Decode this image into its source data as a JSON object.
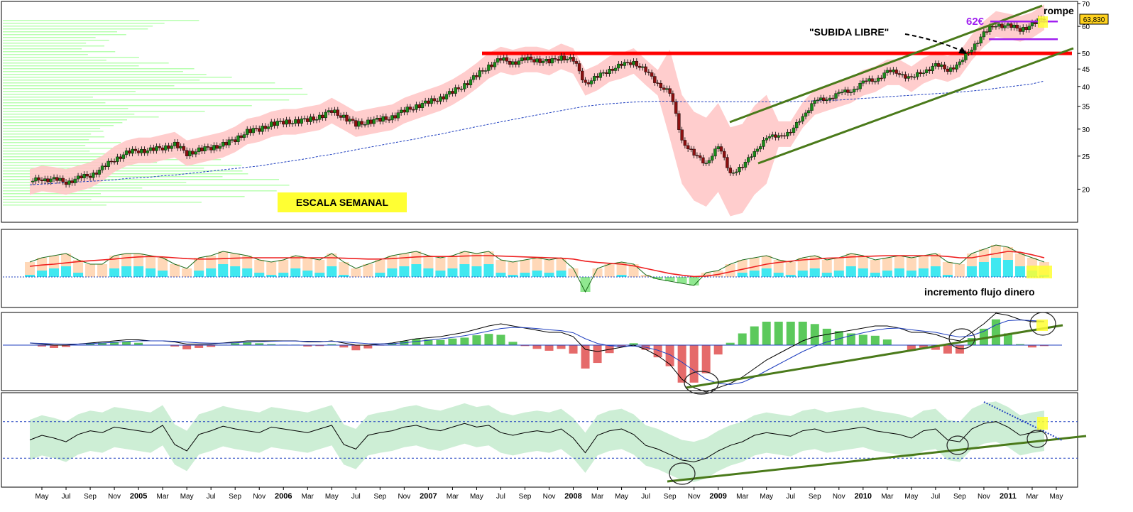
{
  "annotations": {
    "scale_label": "ESCALA SEMANAL",
    "breakout_label": "\"SUBIDA LIBRE\"",
    "target_label": "62€",
    "breaks_label": "rompe",
    "price_tag": "63,830",
    "money_flow_label": "incremento flujo dinero"
  },
  "colors": {
    "bull_candle": "#1a8a1a",
    "bear_candle": "#8b1010",
    "band_fill": "#ffc8c8",
    "resistance": "#ff0000",
    "channel": "#4a7a1a",
    "moving_average": "#1f3fbf",
    "target_line": "#a020f0",
    "highlight": "#ffff33",
    "volume_profile": "#b8ffb0"
  },
  "chart_data": [
    {
      "type": "line",
      "panel": "price",
      "yscale": "log",
      "ylim": [
        16,
        71
      ],
      "yticks": [
        "20",
        "25",
        "30",
        "35",
        "40",
        "45",
        "50",
        "60",
        "70"
      ],
      "yticks_values": [
        20,
        25,
        30,
        35,
        40,
        45,
        50,
        60,
        70
      ],
      "x": [
        "2004-04",
        "2004-05",
        "2004-06",
        "2004-07",
        "2004-08",
        "2004-09",
        "2004-10",
        "2004-11",
        "2004-12",
        "2005-01",
        "2005-02",
        "2005-03",
        "2005-04",
        "2005-05",
        "2005-06",
        "2005-07",
        "2005-08",
        "2005-09",
        "2005-10",
        "2005-11",
        "2005-12",
        "2006-01",
        "2006-02",
        "2006-03",
        "2006-04",
        "2006-05",
        "2006-06",
        "2006-07",
        "2006-08",
        "2006-09",
        "2006-10",
        "2006-11",
        "2006-12",
        "2007-01",
        "2007-02",
        "2007-03",
        "2007-04",
        "2007-05",
        "2007-06",
        "2007-07",
        "2007-08",
        "2007-09",
        "2007-10",
        "2007-11",
        "2007-12",
        "2008-01",
        "2008-02",
        "2008-03",
        "2008-04",
        "2008-05",
        "2008-06",
        "2008-07",
        "2008-08",
        "2008-09",
        "2008-10",
        "2008-11",
        "2008-12",
        "2009-01",
        "2009-02",
        "2009-03",
        "2009-04",
        "2009-05",
        "2009-06",
        "2009-07",
        "2009-08",
        "2009-09",
        "2009-10",
        "2009-11",
        "2009-12",
        "2010-01",
        "2010-02",
        "2010-03",
        "2010-04",
        "2010-05",
        "2010-06",
        "2010-07",
        "2010-08",
        "2010-09",
        "2010-10",
        "2010-11",
        "2010-12",
        "2011-01",
        "2011-02",
        "2011-03",
        "2011-04"
      ],
      "series": [
        {
          "values": [
            21,
            21.5,
            21.3,
            21,
            21.5,
            22,
            23,
            24.5,
            25.5,
            26,
            26,
            26.5,
            27,
            25.5,
            26,
            26.5,
            27,
            28,
            29.5,
            30,
            31,
            31.5,
            31.5,
            32,
            32.5,
            34,
            32.5,
            31,
            31.5,
            32,
            32.5,
            34,
            35,
            36,
            37,
            38.5,
            40.5,
            43,
            46,
            48,
            47,
            48,
            48,
            47,
            49,
            47.5,
            41,
            42.5,
            45,
            46,
            47.5,
            44,
            41,
            38,
            28,
            25,
            24,
            26.5,
            22.5,
            23,
            26,
            28,
            29,
            29,
            33,
            36,
            37,
            38,
            39,
            41,
            42,
            44,
            44,
            42,
            44.5,
            46,
            45,
            46.5,
            52,
            57,
            61,
            60,
            59,
            60.5,
            63.8
          ]
        },
        {
          "name": "MA",
          "values": [
            20.6,
            20.7,
            20.8,
            20.9,
            21,
            21.1,
            21.2,
            21.3,
            21.5,
            21.6,
            21.7,
            21.9,
            22,
            22.2,
            22.4,
            22.6,
            22.8,
            23,
            23.2,
            23.4,
            23.7,
            24,
            24.3,
            24.6,
            25,
            25.3,
            25.7,
            26.1,
            26.5,
            26.9,
            27.3,
            27.7,
            28.1,
            28.6,
            29,
            29.5,
            30,
            30.5,
            31,
            31.5,
            32,
            32.5,
            33,
            33.5,
            34,
            34.5,
            35,
            35.3,
            35.6,
            35.8,
            36,
            36.1,
            36.2,
            36.2,
            36.1,
            36.1,
            36.1,
            36.1,
            36.1,
            36.1,
            36.1,
            36.1,
            36.1,
            36.1,
            36.2,
            36.3,
            36.4,
            36.5,
            36.7,
            36.9,
            37.1,
            37.3,
            37.5,
            37.7,
            37.9,
            38.1,
            38.3,
            38.5,
            38.8,
            39.1,
            39.5,
            39.9,
            40.3,
            40.7,
            41.5
          ]
        }
      ],
      "resistance_level": 50,
      "target_levels": [
        62,
        55
      ],
      "last_price": 63.83
    },
    {
      "type": "area",
      "panel": "money-flow",
      "ylim": [
        -1,
        1
      ],
      "series": [
        {
          "values": [
            0.35,
            0.45,
            0.5,
            0.55,
            0.4,
            0.3,
            0.3,
            0.5,
            0.55,
            0.55,
            0.5,
            0.45,
            0.3,
            0.2,
            0.45,
            0.5,
            0.6,
            0.55,
            0.5,
            0.4,
            0.35,
            0.4,
            0.5,
            0.45,
            0.4,
            0.55,
            0.35,
            0.2,
            0.3,
            0.4,
            0.5,
            0.55,
            0.6,
            0.5,
            0.45,
            0.5,
            0.6,
            0.55,
            0.6,
            0.4,
            0.35,
            0.4,
            0.45,
            0.4,
            0.45,
            0.2,
            -0.35,
            0.2,
            0.3,
            0.35,
            0.3,
            0.05,
            -0.05,
            -0.1,
            -0.15,
            -0.2,
            0.1,
            0.15,
            0.3,
            0.4,
            0.45,
            0.5,
            0.4,
            0.35,
            0.45,
            0.5,
            0.4,
            0.45,
            0.55,
            0.5,
            0.4,
            0.45,
            0.5,
            0.45,
            0.5,
            0.55,
            0.35,
            0.3,
            0.55,
            0.65,
            0.75,
            0.7,
            0.55,
            0.45,
            0.35
          ]
        },
        {
          "name": "MA",
          "values": [
            0.25,
            0.28,
            0.3,
            0.33,
            0.36,
            0.38,
            0.4,
            0.42,
            0.45,
            0.47,
            0.48,
            0.47,
            0.45,
            0.43,
            0.42,
            0.42,
            0.43,
            0.44,
            0.45,
            0.45,
            0.45,
            0.45,
            0.45,
            0.45,
            0.45,
            0.45,
            0.44,
            0.43,
            0.42,
            0.42,
            0.43,
            0.45,
            0.47,
            0.48,
            0.48,
            0.48,
            0.49,
            0.5,
            0.5,
            0.49,
            0.48,
            0.47,
            0.46,
            0.45,
            0.44,
            0.42,
            0.37,
            0.34,
            0.32,
            0.3,
            0.26,
            0.2,
            0.14,
            0.08,
            0.04,
            0.01,
            0.02,
            0.06,
            0.12,
            0.18,
            0.24,
            0.3,
            0.34,
            0.37,
            0.4,
            0.42,
            0.44,
            0.45,
            0.47,
            0.48,
            0.49,
            0.5,
            0.5,
            0.5,
            0.5,
            0.5,
            0.48,
            0.45,
            0.45,
            0.5,
            0.55,
            0.6,
            0.58,
            0.52,
            0.45
          ]
        }
      ]
    },
    {
      "type": "line",
      "panel": "macd",
      "series": [
        {
          "values": [
            0.1,
            0.05,
            0,
            0,
            0.05,
            0.1,
            0.15,
            0.2,
            0.25,
            0.25,
            0.2,
            0.2,
            0.15,
            0.05,
            0.05,
            0.05,
            0.1,
            0.15,
            0.2,
            0.2,
            0.2,
            0.2,
            0.2,
            0.15,
            0.15,
            0.2,
            0.1,
            0,
            0,
            0.05,
            0.1,
            0.2,
            0.3,
            0.35,
            0.4,
            0.5,
            0.6,
            0.75,
            0.9,
            1,
            0.9,
            0.8,
            0.7,
            0.6,
            0.6,
            0.4,
            -0.2,
            -0.3,
            -0.2,
            -0.1,
            0,
            -0.2,
            -0.5,
            -0.9,
            -1.6,
            -2,
            -2.2,
            -2,
            -1.8,
            -1.5,
            -1.1,
            -0.7,
            -0.4,
            -0.1,
            0.2,
            0.4,
            0.5,
            0.6,
            0.7,
            0.8,
            0.9,
            0.9,
            0.8,
            0.6,
            0.6,
            0.5,
            0.3,
            0.2,
            0.6,
            1,
            1.5,
            1.4,
            1.2,
            1.1,
            1.1
          ]
        },
        {
          "name": "signal",
          "values": [
            0.1,
            0.08,
            0.06,
            0.04,
            0.05,
            0.07,
            0.1,
            0.13,
            0.17,
            0.2,
            0.2,
            0.2,
            0.18,
            0.14,
            0.11,
            0.09,
            0.09,
            0.11,
            0.14,
            0.16,
            0.18,
            0.19,
            0.19,
            0.18,
            0.17,
            0.18,
            0.15,
            0.11,
            0.07,
            0.06,
            0.07,
            0.11,
            0.17,
            0.23,
            0.29,
            0.36,
            0.44,
            0.54,
            0.66,
            0.78,
            0.83,
            0.82,
            0.78,
            0.72,
            0.68,
            0.58,
            0.3,
            0.08,
            -0.03,
            -0.06,
            -0.04,
            -0.1,
            -0.24,
            -0.45,
            -0.8,
            -1.2,
            -1.6,
            -1.8,
            -1.85,
            -1.75,
            -1.5,
            -1.2,
            -0.9,
            -0.6,
            -0.3,
            -0.05,
            0.15,
            0.3,
            0.45,
            0.58,
            0.7,
            0.78,
            0.8,
            0.72,
            0.66,
            0.6,
            0.48,
            0.38,
            0.45,
            0.65,
            0.95,
            1.15,
            1.18,
            1.15,
            1.12
          ]
        }
      ]
    },
    {
      "type": "line",
      "panel": "rsi",
      "ylim": [
        0,
        100
      ],
      "series": [
        {
          "values": [
            50,
            55,
            52,
            48,
            56,
            60,
            58,
            64,
            62,
            60,
            58,
            66,
            45,
            38,
            56,
            60,
            65,
            62,
            60,
            58,
            64,
            62,
            60,
            58,
            62,
            66,
            45,
            40,
            55,
            58,
            60,
            64,
            66,
            62,
            60,
            64,
            68,
            64,
            66,
            58,
            55,
            58,
            60,
            58,
            62,
            52,
            36,
            55,
            60,
            62,
            56,
            44,
            40,
            34,
            28,
            26,
            30,
            38,
            44,
            48,
            55,
            58,
            56,
            54,
            60,
            62,
            58,
            60,
            62,
            64,
            60,
            58,
            56,
            52,
            60,
            62,
            50,
            48,
            62,
            68,
            70,
            64,
            55,
            58,
            60
          ]
        }
      ]
    }
  ]
}
